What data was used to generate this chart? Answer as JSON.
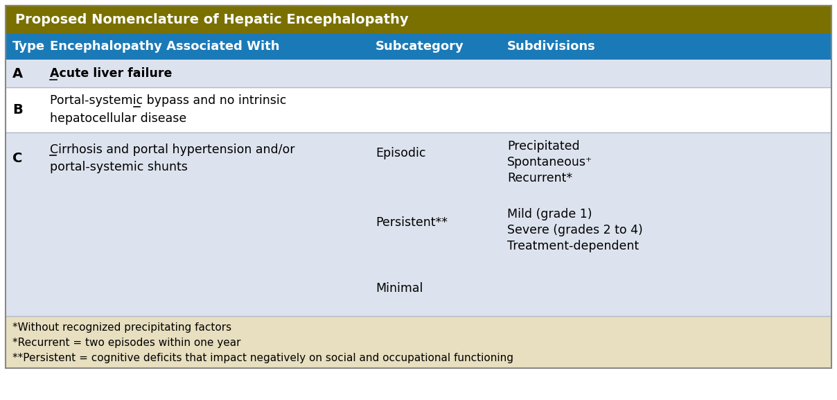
{
  "title": "Proposed Nomenclature of Hepatic Encephalopathy",
  "title_bg": "#7a7000",
  "header_bg": "#1a7ab8",
  "header_text_color": "#ffffff",
  "header_cols": [
    "Type",
    "Encephalopathy Associated With",
    "Subcategory",
    "Subdivisions"
  ],
  "row_A_bg": "#dde3ee",
  "row_B_bg": "#ffffff",
  "row_C_bg": "#dde3ee",
  "footer_bg": "#e8dfc0",
  "title_fontsize": 14,
  "header_fontsize": 13,
  "body_fontsize": 12.5,
  "footnote_fontsize": 11,
  "bold_type_fontsize": 14
}
